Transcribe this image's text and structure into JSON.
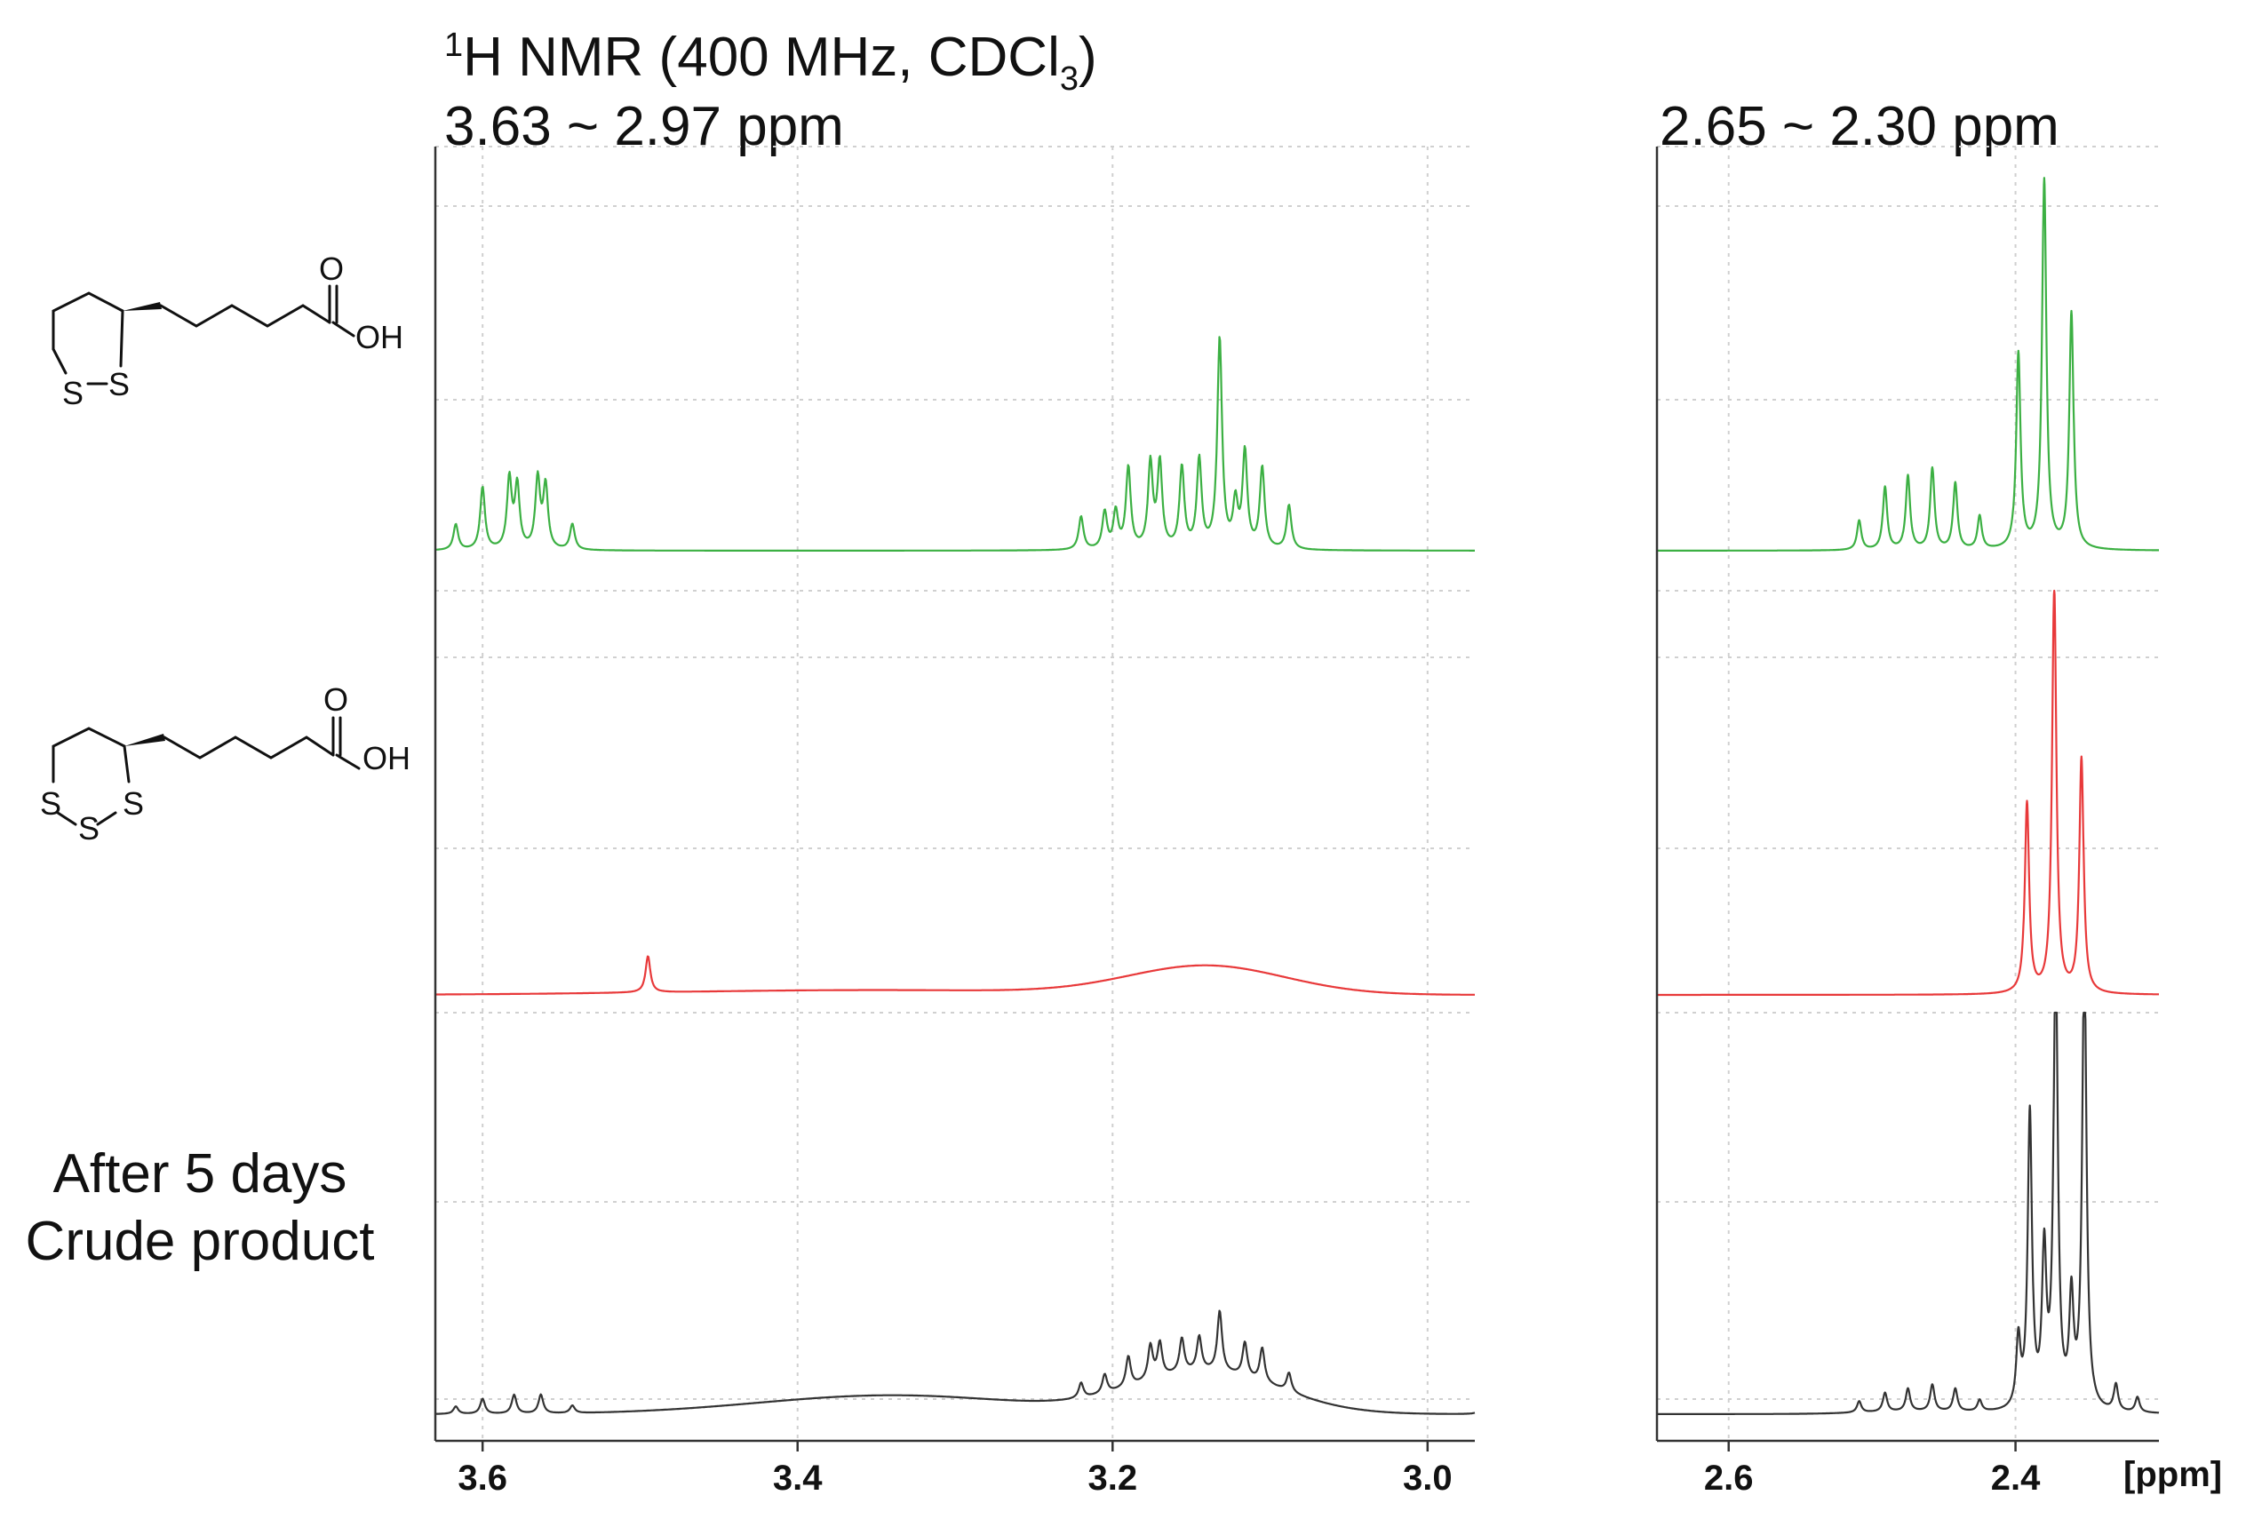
{
  "title": {
    "nucleus_sup": "1",
    "nucleus_main": "H NMR (400 MHz, CDCl",
    "sub": "3",
    "close": ")"
  },
  "range_left": "3.63 ~ 2.97 ppm",
  "range_right": "2.65 ~ 2.30 ppm",
  "sample_label_line1": "After 5 days",
  "sample_label_line2": "Crude product",
  "atoms": {
    "s": "S",
    "o": "O",
    "oh": "OH"
  },
  "axis_unit": "[ppm]",
  "colors": {
    "lipoic": "#3cb043",
    "trithiane": "#e8393a",
    "crude": "#333333",
    "grid": "#d0d0d0"
  },
  "chart_data": {
    "type": "line",
    "xlabel": "[ppm]",
    "x_reversed": true,
    "panels": [
      {
        "name": "left",
        "xlim": [
          3.63,
          2.97
        ],
        "ticks": [
          {
            "v": 3.6,
            "label": "3.6"
          },
          {
            "v": 3.4,
            "label": "3.4"
          },
          {
            "v": 3.2,
            "label": "3.2"
          },
          {
            "v": 3.0,
            "label": "3.0"
          }
        ]
      },
      {
        "name": "right",
        "xlim": [
          2.65,
          2.3
        ],
        "ticks": [
          {
            "v": 2.6,
            "label": "2.6"
          },
          {
            "v": 2.4,
            "label": "2.4"
          }
        ]
      }
    ],
    "series": [
      {
        "id": "lipoic",
        "color": "#3cb043",
        "baseline": 0,
        "broad": [],
        "peaks": [
          {
            "ppm": 3.617,
            "h": 0.07
          },
          {
            "ppm": 3.6,
            "h": 0.17
          },
          {
            "ppm": 3.583,
            "h": 0.19
          },
          {
            "ppm": 3.578,
            "h": 0.17
          },
          {
            "ppm": 3.565,
            "h": 0.19
          },
          {
            "ppm": 3.56,
            "h": 0.17
          },
          {
            "ppm": 3.543,
            "h": 0.07
          },
          {
            "ppm": 3.22,
            "h": 0.09
          },
          {
            "ppm": 3.205,
            "h": 0.1
          },
          {
            "ppm": 3.198,
            "h": 0.1
          },
          {
            "ppm": 3.19,
            "h": 0.22
          },
          {
            "ppm": 3.176,
            "h": 0.23
          },
          {
            "ppm": 3.17,
            "h": 0.23
          },
          {
            "ppm": 3.156,
            "h": 0.22
          },
          {
            "ppm": 3.145,
            "h": 0.24
          },
          {
            "ppm": 3.132,
            "h": 0.57
          },
          {
            "ppm": 3.122,
            "h": 0.12
          },
          {
            "ppm": 3.116,
            "h": 0.26
          },
          {
            "ppm": 3.105,
            "h": 0.22
          },
          {
            "ppm": 3.088,
            "h": 0.12
          },
          {
            "ppm": 2.509,
            "h": 0.08
          },
          {
            "ppm": 2.491,
            "h": 0.17
          },
          {
            "ppm": 2.475,
            "h": 0.2
          },
          {
            "ppm": 2.458,
            "h": 0.22
          },
          {
            "ppm": 2.442,
            "h": 0.18
          },
          {
            "ppm": 2.425,
            "h": 0.09
          },
          {
            "ppm": 2.398,
            "h": 0.53
          },
          {
            "ppm": 2.38,
            "h": 1.0
          },
          {
            "ppm": 2.361,
            "h": 0.64
          }
        ]
      },
      {
        "id": "trithiane",
        "color": "#e8393a",
        "baseline": 0,
        "broad": [
          {
            "ppm": 3.35,
            "h": 0.012,
            "w": 0.18
          },
          {
            "ppm": 3.14,
            "h": 0.07,
            "w": 0.07
          }
        ],
        "peaks": [
          {
            "ppm": 3.495,
            "h": 0.09
          },
          {
            "ppm": 2.392,
            "h": 0.47
          },
          {
            "ppm": 2.373,
            "h": 1.0
          },
          {
            "ppm": 2.354,
            "h": 0.58
          }
        ]
      },
      {
        "id": "crude",
        "color": "#333333",
        "baseline": 0,
        "broad": [
          {
            "ppm": 3.34,
            "h": 0.05,
            "w": 0.12
          },
          {
            "ppm": 3.14,
            "h": 0.11,
            "w": 0.065
          },
          {
            "ppm": 2.47,
            "h": 0.006,
            "w": 0.05
          }
        ],
        "peaks": [
          {
            "ppm": 3.617,
            "h": 0.02
          },
          {
            "ppm": 3.6,
            "h": 0.04
          },
          {
            "ppm": 3.58,
            "h": 0.05
          },
          {
            "ppm": 3.563,
            "h": 0.05
          },
          {
            "ppm": 3.543,
            "h": 0.02
          },
          {
            "ppm": 3.22,
            "h": 0.04
          },
          {
            "ppm": 3.205,
            "h": 0.05
          },
          {
            "ppm": 3.19,
            "h": 0.08
          },
          {
            "ppm": 3.176,
            "h": 0.09
          },
          {
            "ppm": 3.17,
            "h": 0.09
          },
          {
            "ppm": 3.156,
            "h": 0.09
          },
          {
            "ppm": 3.145,
            "h": 0.09
          },
          {
            "ppm": 3.132,
            "h": 0.16
          },
          {
            "ppm": 3.116,
            "h": 0.09
          },
          {
            "ppm": 3.105,
            "h": 0.09
          },
          {
            "ppm": 3.088,
            "h": 0.05
          },
          {
            "ppm": 2.965,
            "h": 0.03
          },
          {
            "ppm": 2.509,
            "h": 0.03
          },
          {
            "ppm": 2.491,
            "h": 0.05
          },
          {
            "ppm": 2.475,
            "h": 0.06
          },
          {
            "ppm": 2.458,
            "h": 0.07
          },
          {
            "ppm": 2.442,
            "h": 0.06
          },
          {
            "ppm": 2.425,
            "h": 0.03
          },
          {
            "ppm": 2.398,
            "h": 0.18
          },
          {
            "ppm": 2.39,
            "h": 0.78
          },
          {
            "ppm": 2.38,
            "h": 0.4
          },
          {
            "ppm": 2.372,
            "h": 1.2
          },
          {
            "ppm": 2.361,
            "h": 0.28
          },
          {
            "ppm": 2.352,
            "h": 1.2
          },
          {
            "ppm": 2.33,
            "h": 0.07
          },
          {
            "ppm": 2.315,
            "h": 0.04
          }
        ]
      }
    ]
  }
}
